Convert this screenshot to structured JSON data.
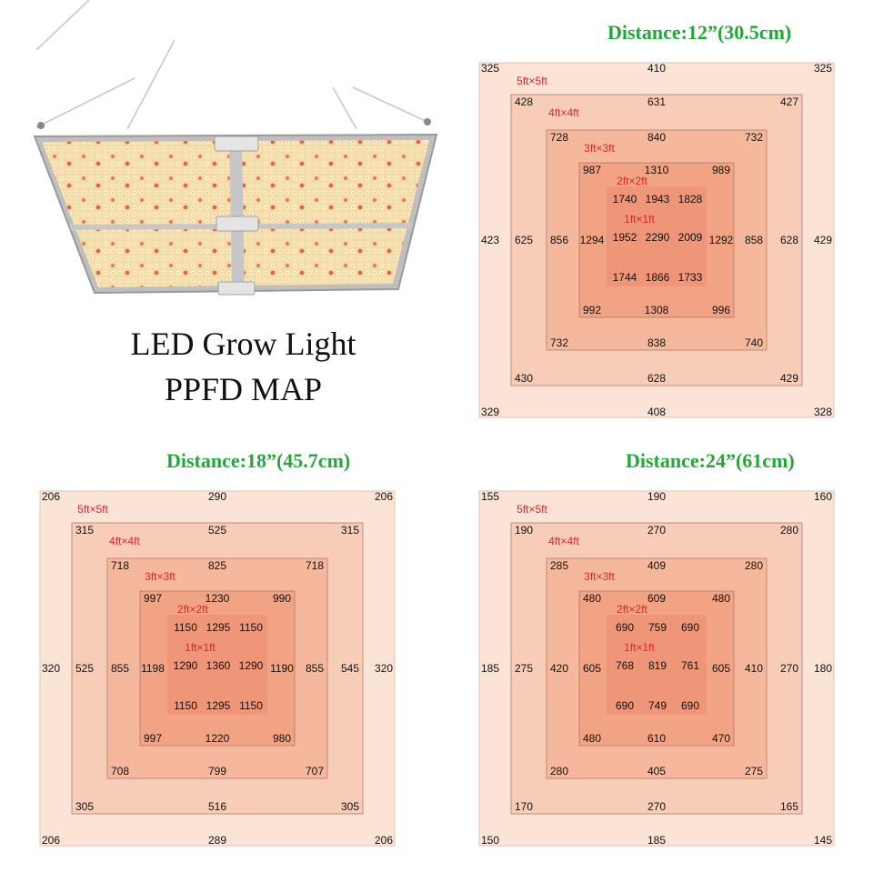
{
  "title": {
    "line1": "LED Grow Light",
    "line2": "PPFD MAP"
  },
  "colors": {
    "title_green": "#22a83a",
    "zone_label_red": "#d8262a",
    "value_text": "#111111",
    "zone_5x5": "#fbe3d6",
    "zone_4x4": "#f8cdb8",
    "zone_3x3": "#f5b89c",
    "zone_2x2": "#f1a384",
    "zone_1x1": "#ee9274",
    "led_panel": "#f4d59a"
  },
  "chart_data": [
    {
      "type": "heatmap",
      "title": "Distance:12”(30.5cm)",
      "zones": [
        "5ft×5ft",
        "4ft×4ft",
        "3ft×3ft",
        "2ft×2ft",
        "1ft×1ft"
      ],
      "rings": [
        {
          "zone": "5ft×5ft",
          "values": {
            "tl": "325",
            "t": "410",
            "tr": "325",
            "l": "423",
            "r": "429",
            "bl": "329",
            "b": "408",
            "br": "328"
          }
        },
        {
          "zone": "4ft×4ft",
          "values": {
            "tl": "428",
            "t": "631",
            "tr": "427",
            "l": "625",
            "r": "628",
            "bl": "430",
            "b": "628",
            "br": "429"
          }
        },
        {
          "zone": "3ft×3ft",
          "values": {
            "tl": "728",
            "t": "840",
            "tr": "732",
            "l": "856",
            "r": "858",
            "bl": "732",
            "b": "838",
            "br": "740"
          }
        },
        {
          "zone": "2ft×2ft",
          "values": {
            "tl": "987",
            "t": "1310",
            "tr": "989",
            "l": "1294",
            "r": "1292",
            "bl": "992",
            "b": "1308",
            "br": "996"
          }
        }
      ],
      "core": [
        [
          "1740",
          "1943",
          "1828"
        ],
        [
          "1952",
          "2290",
          "2009"
        ],
        [
          "1744",
          "1866",
          "1733"
        ]
      ]
    },
    {
      "type": "heatmap",
      "title": "Distance:18”(45.7cm)",
      "zones": [
        "5ft×5ft",
        "4ft×4ft",
        "3ft×3ft",
        "2ft×2ft",
        "1ft×1ft"
      ],
      "rings": [
        {
          "zone": "5ft×5ft",
          "values": {
            "tl": "206",
            "t": "290",
            "tr": "206",
            "l": "320",
            "r": "320",
            "bl": "206",
            "b": "289",
            "br": "206"
          }
        },
        {
          "zone": "4ft×4ft",
          "values": {
            "tl": "315",
            "t": "525",
            "tr": "315",
            "l": "525",
            "r": "545",
            "bl": "305",
            "b": "516",
            "br": "305"
          }
        },
        {
          "zone": "3ft×3ft",
          "values": {
            "tl": "718",
            "t": "825",
            "tr": "718",
            "l": "855",
            "r": "855",
            "bl": "708",
            "b": "799",
            "br": "707"
          }
        },
        {
          "zone": "2ft×2ft",
          "values": {
            "tl": "997",
            "t": "1230",
            "tr": "990",
            "l": "1198",
            "r": "1190",
            "bl": "997",
            "b": "1220",
            "br": "980"
          }
        }
      ],
      "core": [
        [
          "1150",
          "1295",
          "1150"
        ],
        [
          "1290",
          "1360",
          "1290"
        ],
        [
          "1150",
          "1295",
          "1150"
        ]
      ]
    },
    {
      "type": "heatmap",
      "title": "Distance:24”(61cm)",
      "zones": [
        "5ft×5ft",
        "4ft×4ft",
        "3ft×3ft",
        "2ft×2ft",
        "1ft×1ft"
      ],
      "rings": [
        {
          "zone": "5ft×5ft",
          "values": {
            "tl": "155",
            "t": "190",
            "tr": "160",
            "l": "185",
            "r": "180",
            "bl": "150",
            "b": "185",
            "br": "145"
          }
        },
        {
          "zone": "4ft×4ft",
          "values": {
            "tl": "190",
            "t": "270",
            "tr": "280",
            "l": "275",
            "r": "270",
            "bl": "170",
            "b": "270",
            "br": "165"
          }
        },
        {
          "zone": "3ft×3ft",
          "values": {
            "tl": "285",
            "t": "409",
            "tr": "280",
            "l": "420",
            "r": "410",
            "bl": "280",
            "b": "405",
            "br": "275"
          }
        },
        {
          "zone": "2ft×2ft",
          "values": {
            "tl": "480",
            "t": "609",
            "tr": "480",
            "l": "605",
            "r": "605",
            "bl": "480",
            "b": "610",
            "br": "470"
          }
        }
      ],
      "core": [
        [
          "690",
          "759",
          "690"
        ],
        [
          "768",
          "819",
          "761"
        ],
        [
          "690",
          "749",
          "690"
        ]
      ]
    }
  ]
}
